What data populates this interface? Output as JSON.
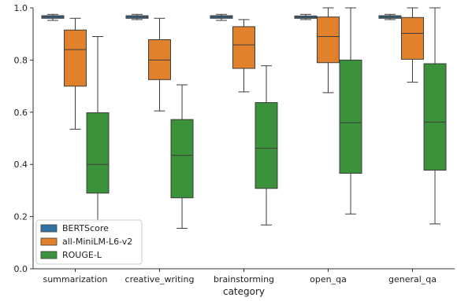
{
  "chart_data": {
    "type": "boxplot",
    "xlabel": "category",
    "ylabel": "",
    "ylim": [
      0.0,
      1.0
    ],
    "yticks": [
      "0.0",
      "0.2",
      "0.4",
      "0.6",
      "0.8",
      "1.0"
    ],
    "grid": false,
    "legend_position": "bottom-left",
    "categories": [
      "summarization",
      "creative_writing",
      "brainstorming",
      "open_qa",
      "general_qa"
    ],
    "series": [
      {
        "name": "BERTScore",
        "color": "#3274a1",
        "boxes": [
          {
            "whislo": 0.952,
            "q1": 0.96,
            "med": 0.965,
            "q3": 0.97,
            "whishi": 0.975
          },
          {
            "whislo": 0.955,
            "q1": 0.96,
            "med": 0.965,
            "q3": 0.97,
            "whishi": 0.975
          },
          {
            "whislo": 0.952,
            "q1": 0.96,
            "med": 0.965,
            "q3": 0.97,
            "whishi": 0.975
          },
          {
            "whislo": 0.955,
            "q1": 0.96,
            "med": 0.964,
            "q3": 0.969,
            "whishi": 0.975
          },
          {
            "whislo": 0.955,
            "q1": 0.96,
            "med": 0.965,
            "q3": 0.97,
            "whishi": 0.975
          }
        ]
      },
      {
        "name": "all-MiniLM-L6-v2",
        "color": "#e1812c",
        "boxes": [
          {
            "whislo": 0.535,
            "q1": 0.7,
            "med": 0.84,
            "q3": 0.915,
            "whishi": 0.96
          },
          {
            "whislo": 0.605,
            "q1": 0.725,
            "med": 0.8,
            "q3": 0.878,
            "whishi": 0.96
          },
          {
            "whislo": 0.678,
            "q1": 0.768,
            "med": 0.858,
            "q3": 0.928,
            "whishi": 0.955
          },
          {
            "whislo": 0.675,
            "q1": 0.79,
            "med": 0.89,
            "q3": 0.965,
            "whishi": 1.0
          },
          {
            "whislo": 0.715,
            "q1": 0.803,
            "med": 0.902,
            "q3": 0.963,
            "whishi": 1.0
          }
        ]
      },
      {
        "name": "ROUGE-L",
        "color": "#3a923a",
        "boxes": [
          {
            "whislo": 0.18,
            "q1": 0.29,
            "med": 0.4,
            "q3": 0.598,
            "whishi": 0.89
          },
          {
            "whislo": 0.155,
            "q1": 0.272,
            "med": 0.435,
            "q3": 0.572,
            "whishi": 0.705
          },
          {
            "whislo": 0.168,
            "q1": 0.308,
            "med": 0.462,
            "q3": 0.637,
            "whishi": 0.778
          },
          {
            "whislo": 0.21,
            "q1": 0.366,
            "med": 0.56,
            "q3": 0.8,
            "whishi": 1.0
          },
          {
            "whislo": 0.172,
            "q1": 0.378,
            "med": 0.562,
            "q3": 0.786,
            "whishi": 1.0
          }
        ]
      }
    ]
  }
}
